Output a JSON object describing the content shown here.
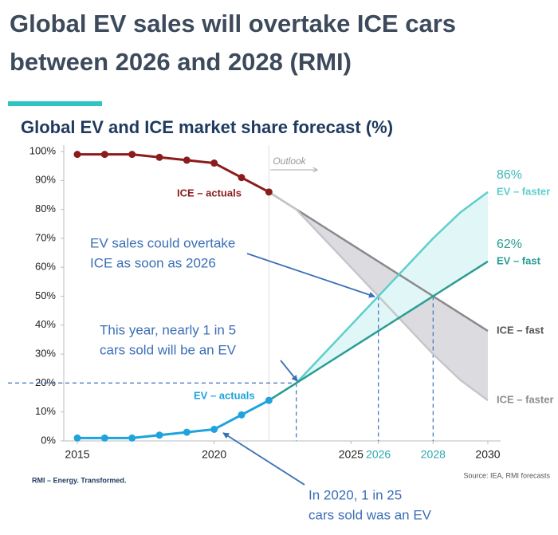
{
  "chart_data": {
    "type": "line",
    "title": [
      "Global EV sales will overtake ICE cars",
      "between 2026 and 2028 (RMI)"
    ],
    "subtitle": "Global EV and ICE market share forecast (%)",
    "x": [
      2015,
      2016,
      2017,
      2018,
      2019,
      2020,
      2021,
      2022,
      2023,
      2024,
      2025,
      2026,
      2027,
      2028,
      2029,
      2030
    ],
    "xlim": [
      2015,
      2030
    ],
    "xticks": [
      2015,
      2020,
      2025,
      2026,
      2028,
      2030
    ],
    "ylim": [
      0,
      100
    ],
    "yticks": [
      {
        "value": 0,
        "label": "0%"
      },
      {
        "value": 10,
        "label": "10%"
      },
      {
        "value": 20,
        "label": "20%"
      },
      {
        "value": 30,
        "label": "30%"
      },
      {
        "value": 40,
        "label": "40%"
      },
      {
        "value": 50,
        "label": "50%"
      },
      {
        "value": 60,
        "label": "60%"
      },
      {
        "value": 70,
        "label": "70%"
      },
      {
        "value": 80,
        "label": "80%"
      },
      {
        "value": 90,
        "label": "90%"
      },
      {
        "value": 100,
        "label": "100%"
      }
    ],
    "series": [
      {
        "name": "ICE – actuals",
        "color": "#8b1c1c",
        "markers": true,
        "values": [
          99,
          99,
          99,
          98,
          97,
          96,
          91,
          86,
          null,
          null,
          null,
          null,
          null,
          null,
          null,
          null
        ]
      },
      {
        "name": "EV – actuals",
        "color": "#1fa3dc",
        "markers": true,
        "values": [
          1,
          1,
          1,
          2,
          3,
          4,
          9,
          14,
          null,
          null,
          null,
          null,
          null,
          null,
          null,
          null
        ]
      },
      {
        "name": "EV – faster",
        "color": "#5ccfcc",
        "values": [
          null,
          null,
          null,
          null,
          null,
          null,
          null,
          14,
          20,
          30,
          40,
          50,
          60,
          70,
          79,
          86
        ],
        "value_labels": [
          null,
          null,
          null,
          null,
          null,
          null,
          null,
          null,
          null,
          null,
          null,
          null,
          null,
          null,
          null,
          "86%"
        ]
      },
      {
        "name": "EV – fast",
        "color": "#2a9d94",
        "values": [
          null,
          null,
          null,
          null,
          null,
          null,
          null,
          14,
          20,
          26,
          32,
          38,
          44,
          50,
          56,
          62
        ],
        "value_labels": [
          null,
          null,
          null,
          null,
          null,
          null,
          null,
          null,
          null,
          null,
          null,
          null,
          null,
          null,
          null,
          "62%"
        ]
      },
      {
        "name": "ICE – fast",
        "color": "#8a8a8e",
        "values": [
          null,
          null,
          null,
          null,
          null,
          null,
          null,
          86,
          80,
          74,
          68,
          62,
          56,
          50,
          44,
          38
        ]
      },
      {
        "name": "ICE – faster",
        "color": "#c6c6ca",
        "values": [
          null,
          null,
          null,
          null,
          null,
          null,
          null,
          86,
          80,
          70,
          60,
          50,
          40,
          30,
          21,
          14
        ]
      }
    ],
    "outlook_label": "Outlook",
    "outlook_start": 2022,
    "reference_points": [
      {
        "x": 2023,
        "y": 20
      },
      {
        "x": 2026,
        "y": 50
      },
      {
        "x": 2028,
        "y": 50
      }
    ],
    "annotations": [
      [
        "EV sales could overtake",
        "ICE as soon as 2026"
      ],
      [
        "This year, nearly 1 in 5",
        "cars sold will be an EV"
      ],
      [
        "In 2020, 1 in 25",
        "cars sold was an EV"
      ]
    ],
    "footer": "RMI – Energy. Transformed.",
    "source": "Source: IEA, RMI forecasts"
  }
}
